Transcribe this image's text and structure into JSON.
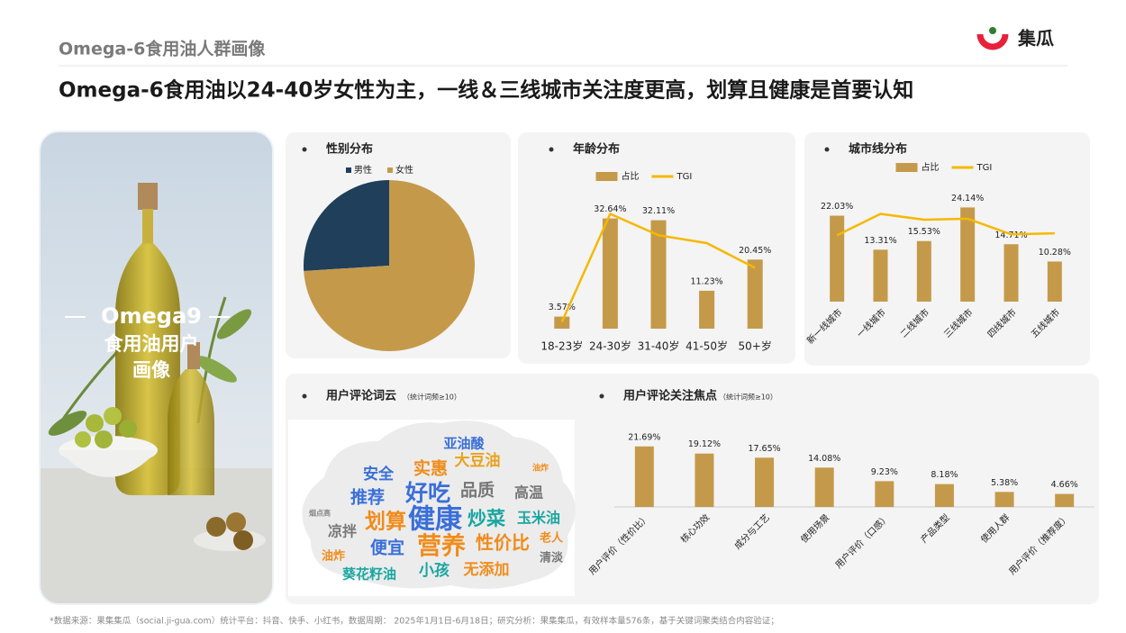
{
  "header": {
    "section": "Omega-6食用油人群画像",
    "logo": "集瓜",
    "headline": "Omega-6食用油以24-40岁女性为主，一线＆三线城市关注度更高，划算且健康是首要认知"
  },
  "photo": {
    "lines": [
      "Omega9",
      "食用油用户",
      "画像"
    ]
  },
  "wordcloud": {
    "title": "用户评论词云",
    "note": "（统计词频≥10）",
    "words": [
      "健康",
      "营养",
      "好吃",
      "划算",
      "炒菜",
      "性价比",
      "推荐",
      "品质",
      "实惠",
      "便宜",
      "大豆油",
      "玉米油",
      "安全",
      "亚油酸",
      "高温",
      "凉拌",
      "小孩",
      "无添加",
      "葵花籽油",
      "油炸",
      "老人",
      "清淡",
      "烟点高",
      "油炸"
    ]
  },
  "footnote": "*数据来源：果集集瓜（social.ji-gua.com）统计平台：抖音、快手、小红书，数据周期： 2025年1月1日-6月18日；研究分析：果集集瓜，有效样本量576条，基于关键词聚类结合内容验证；",
  "chart_data": [
    {
      "type": "pie",
      "title": "性别分布",
      "categories": [
        "男性",
        "女性"
      ],
      "values": [
        26,
        74
      ],
      "colors": [
        "#1f3f5b",
        "#c49a4a"
      ],
      "legend": "top"
    },
    {
      "type": "bar",
      "title": "年龄分布",
      "categories": [
        "18-23岁",
        "24-30岁",
        "31-40岁",
        "41-50岁",
        "50+岁"
      ],
      "ylim": [
        0,
        40
      ],
      "y2lim": [
        40,
        160
      ],
      "legend": "top",
      "series": [
        {
          "name": "占比",
          "color": "#c49a4a",
          "values": [
            3.57,
            32.64,
            32.11,
            11.23,
            20.45
          ],
          "value_labels": [
            "3.57%",
            "32.64%",
            "32.11%",
            "11.23%",
            "20.45%"
          ]
        },
        {
          "name": "TGI",
          "color": "#f5b800",
          "axis": "y2",
          "values": [
            46,
            142,
            123,
            116,
            94
          ]
        }
      ]
    },
    {
      "type": "bar",
      "title": "城市线分布",
      "categories": [
        "新一线城市",
        "一线城市",
        "二线城市",
        "三线城市",
        "四线城市",
        "五线城市"
      ],
      "ylim": [
        0,
        30
      ],
      "y2lim": [
        40,
        160
      ],
      "legend": "top",
      "series": [
        {
          "name": "占比",
          "color": "#c49a4a",
          "values": [
            22.03,
            13.31,
            15.53,
            24.14,
            14.71,
            10.28
          ],
          "value_labels": [
            "22.03%",
            "13.31%",
            "15.53%",
            "24.14%",
            "14.71%",
            "10.28%"
          ]
        },
        {
          "name": "TGI",
          "color": "#f5b800",
          "axis": "y2",
          "values": [
            108,
            130,
            124,
            125,
            109,
            110
          ]
        }
      ]
    },
    {
      "type": "bar",
      "title": "用户评论关注焦点",
      "subtitle": "（统计词频≥10）",
      "categories": [
        "用户评价（性价比）",
        "核心功效",
        "成分与工艺",
        "使用场景",
        "用户评价（口感）",
        "产品类型",
        "使用人群",
        "用户评价（推荐度）"
      ],
      "ylim": [
        0,
        30
      ],
      "series": [
        {
          "name": "占比",
          "color": "#c49a4a",
          "values": [
            21.69,
            19.12,
            17.65,
            14.08,
            9.23,
            8.18,
            5.38,
            4.66
          ],
          "value_labels": [
            "21.69%",
            "19.12%",
            "17.65%",
            "14.08%",
            "9.23%",
            "8.18%",
            "5.38%",
            "4.66%"
          ]
        }
      ]
    }
  ]
}
